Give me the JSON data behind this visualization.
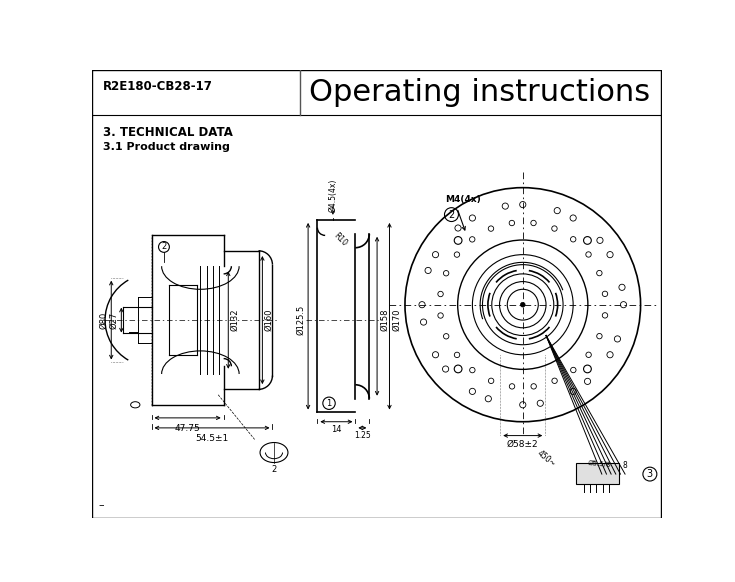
{
  "header_model": "R2E180-CB28-17",
  "header_title": "Operating instructions",
  "section_title": "3. TECHNICAL DATA",
  "subsection_title": "3.1 Product drawing",
  "bg_color": "#ffffff",
  "line_color": "#000000"
}
